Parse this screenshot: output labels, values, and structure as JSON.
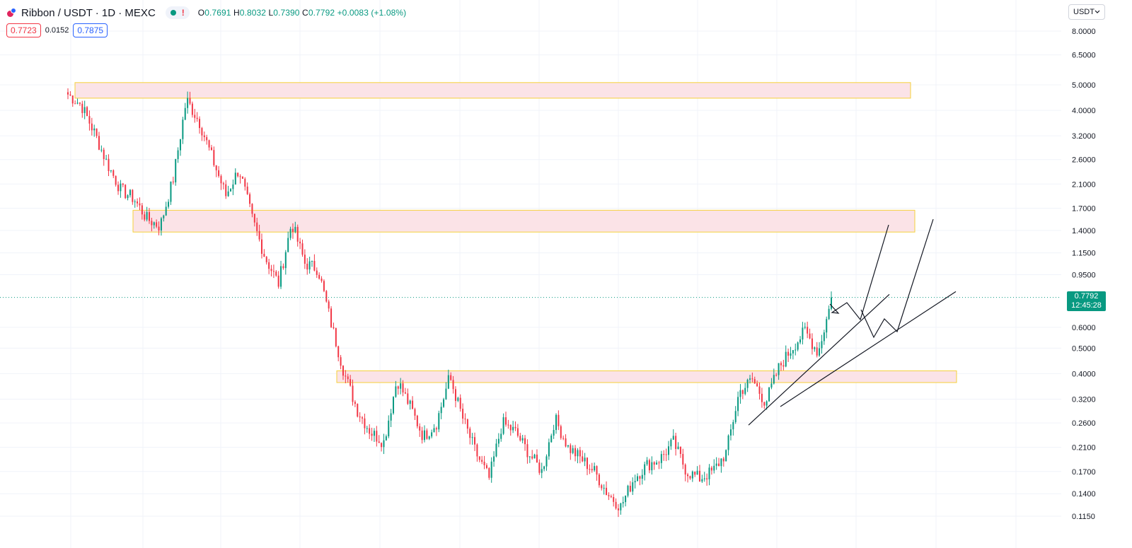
{
  "header": {
    "title": "Ribbon / USDT · 1D · MEXC",
    "alert_glyph": "!",
    "ohlc": [
      {
        "key": "O",
        "value": "0.7691"
      },
      {
        "key": "H",
        "value": "0.8032"
      },
      {
        "key": "L",
        "value": "0.7390"
      },
      {
        "key": "C",
        "value": "0.7792"
      }
    ],
    "change": "+0.0083 (+1.08%)"
  },
  "quote": {
    "bid": "0.7723",
    "spread": "0.0152",
    "ask": "0.7875"
  },
  "currency_button": {
    "label": "USDT",
    "chevron_icon": "chevron-down-icon"
  },
  "last_price": {
    "value": "0.7792",
    "countdown": "12:45:28"
  },
  "colors": {
    "up": "#089981",
    "down": "#f23645",
    "zone_fill": "#fbe3e7",
    "zone_border": "#f5d13b"
  },
  "chart_data": {
    "type": "candlestick",
    "y_scale": "log",
    "y_tick_labels": [
      "8.0000",
      "6.5000",
      "5.0000",
      "4.0000",
      "3.2000",
      "2.6000",
      "2.1000",
      "1.7000",
      "1.4000",
      "1.1500",
      "0.9500",
      "0.6000",
      "0.5000",
      "0.4000",
      "0.3200",
      "0.2600",
      "0.2100",
      "0.1700",
      "0.1400",
      "0.1150"
    ],
    "grid": true,
    "last_close": 0.7792,
    "price_path": [
      4.6,
      4.2,
      3.3,
      2.5,
      2.0,
      1.85,
      1.55,
      1.45,
      2.2,
      4.4,
      3.6,
      2.6,
      1.9,
      2.4,
      1.55,
      1.1,
      0.88,
      1.5,
      1.05,
      1.0,
      0.62,
      0.4,
      0.29,
      0.24,
      0.22,
      0.38,
      0.3,
      0.23,
      0.26,
      0.39,
      0.27,
      0.2,
      0.16,
      0.26,
      0.24,
      0.2,
      0.17,
      0.27,
      0.21,
      0.19,
      0.17,
      0.14,
      0.125,
      0.16,
      0.18,
      0.19,
      0.22,
      0.17,
      0.16,
      0.17,
      0.2,
      0.34,
      0.38,
      0.31,
      0.42,
      0.5,
      0.58,
      0.48,
      0.76
    ],
    "zones": [
      {
        "from": 4.45,
        "to": 5.1
      },
      {
        "from": 1.38,
        "to": 1.67
      },
      {
        "from": 0.37,
        "to": 0.41
      }
    ],
    "trendlines": [
      {
        "from": [
          0.255,
          0.59
        ],
        "to": [
          0.8,
          0.95
        ]
      },
      {
        "from": [
          0.3,
          0.72
        ],
        "to": [
          0.82,
          1.0
        ]
      }
    ],
    "projections": [
      [
        [
          0.79,
          0.0
        ],
        [
          0.71,
          0.05
        ],
        [
          0.77,
          0.12
        ],
        [
          0.68,
          0.2
        ],
        [
          1.45,
          0.43
        ]
      ],
      [
        [
          0.58,
          0.68
        ],
        [
          0.62,
          0.75
        ],
        [
          0.54,
          0.8
        ],
        [
          0.57,
          0.87
        ],
        [
          1.55,
          1.0
        ]
      ]
    ]
  }
}
